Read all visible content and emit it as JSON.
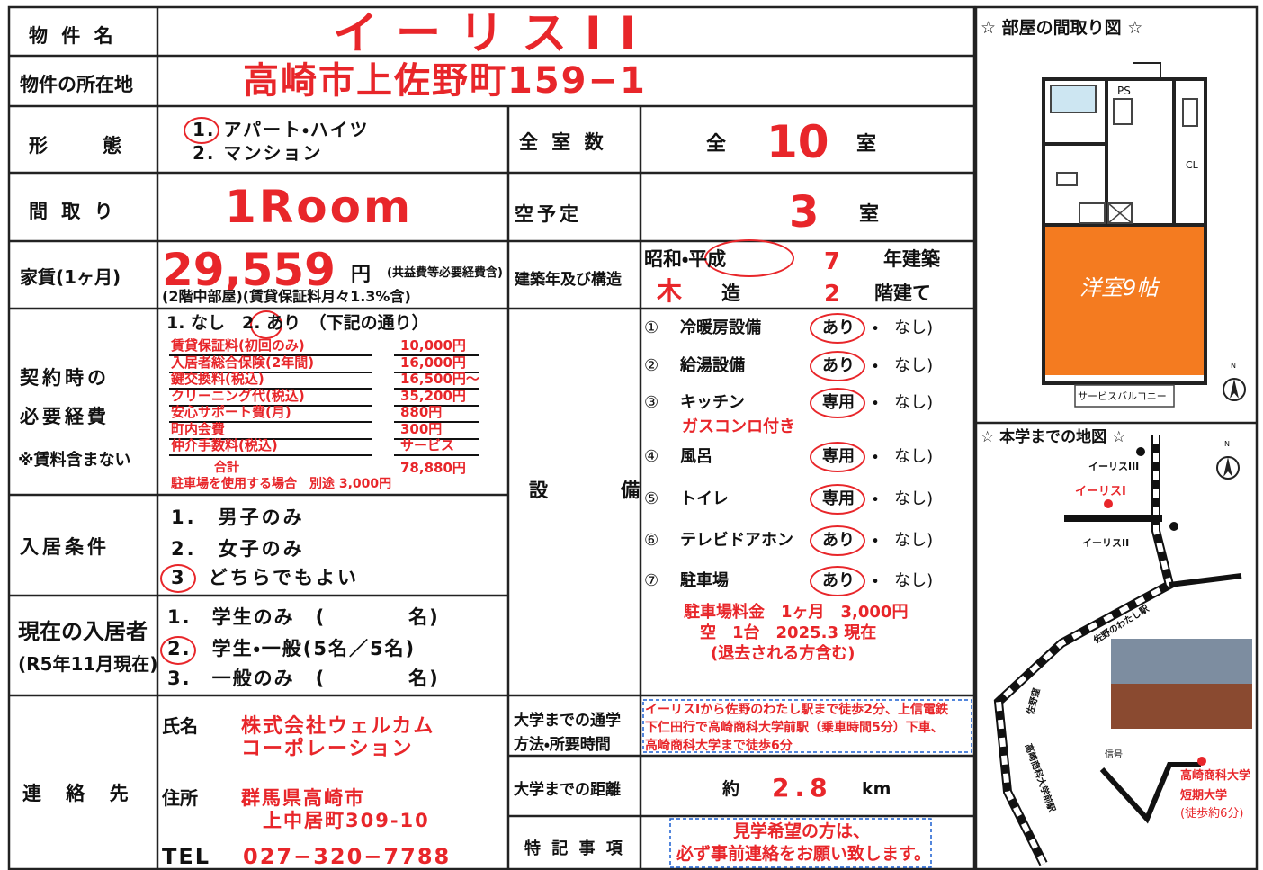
{
  "property": {
    "label": "物 件 名",
    "name": "イーリスII"
  },
  "address": {
    "label": "物件の所在地",
    "value": "高崎市上佐野町159−1"
  },
  "building_type": {
    "label": "形　態",
    "options": [
      "1. アパート・ハイツ",
      "2. マンション"
    ]
  },
  "total_rooms": {
    "label": "全 室 数",
    "prefix": "全",
    "count": "10",
    "suffix": "室"
  },
  "room_layout": {
    "label": "間 取 り",
    "value": "1Room"
  },
  "vacancy": {
    "label": "空予定",
    "count": "3",
    "suffix": "室"
  },
  "rent": {
    "label": "家賃(1ヶ月)",
    "amount": "29,559",
    "unit": "円",
    "note": "(共益費等必要経費含)",
    "sub": "(2階中部屋)(賃貸保証料月々1.3%含)"
  },
  "construction": {
    "label": "建築年及び構造",
    "era": "昭和・平成",
    "year": "7",
    "year_suffix": "年建築",
    "structure": "木",
    "structure_suffix": "造",
    "floors": "2",
    "floors_suffix": "階建て"
  },
  "initial_costs": {
    "label": [
      "契約時の",
      "必要経費",
      "※賃料含まない"
    ],
    "choice": "1. なし　2. あり　（下記の通り）",
    "items": [
      [
        "賃貸保証料(初回のみ)",
        "10,000円"
      ],
      [
        "入居者総合保険(2年間)",
        "16,000円"
      ],
      [
        "鍵交換料(税込)",
        "16,500円〜"
      ],
      [
        "クリーニング代(税込)",
        "35,200円"
      ],
      [
        "安心サポート費(月)",
        "880円"
      ],
      [
        "町内会費",
        "300円"
      ],
      [
        "仲介手数料(税込)",
        "サービス"
      ]
    ],
    "total_label": "合計",
    "total": "78,880円",
    "parking_note": "駐車場を使用する場合　別途 3,000円"
  },
  "tenant_conditions": {
    "label": "入居条件",
    "options": [
      "1.　男子のみ",
      "2.　女子のみ",
      "3　どちらでもよい"
    ]
  },
  "current_residents": {
    "label": "現在の入居者",
    "label_sub": "(R5年11月現在)",
    "options": [
      "1.　学生のみ　(　　　　名)",
      "2.　学生・一般(5名／5名)",
      "3.　一般のみ　(　　　　名)"
    ]
  },
  "contact": {
    "label": "連 絡 先",
    "name_label": "氏名",
    "name": [
      "株式会社ウェルカム",
      "コーポレーション"
    ],
    "address_label": "住所",
    "address": [
      "群馬県高崎市",
      "上中居町309-10"
    ],
    "tel_label": "TEL",
    "tel": "027−320−7788"
  },
  "equipment": {
    "label": "設　備",
    "items": [
      {
        "num": "①",
        "name": "冷暖房設備",
        "value": "あり",
        "other": "・　なし)"
      },
      {
        "num": "②",
        "name": "給湯設備",
        "value": "あり",
        "other": "・　なし)"
      },
      {
        "num": "③",
        "name": "キッチン",
        "value": "専用",
        "other": "・　なし)"
      },
      {
        "num": "④",
        "name": "風呂",
        "value": "専用",
        "other": "・　なし)"
      },
      {
        "num": "⑤",
        "name": "トイレ",
        "value": "専用",
        "other": "・　なし)"
      },
      {
        "num": "⑥",
        "name": "テレビドアホン",
        "value": "あり",
        "other": "・　なし)"
      },
      {
        "num": "⑦",
        "name": "駐車場",
        "value": "あり",
        "other": "・　なし)"
      }
    ],
    "kitchen_note": "ガスコンロ付き",
    "parking_notes": [
      "駐車場料金　1ヶ月　3,000円",
      "空　1台　2025.3 現在",
      "(退去される方含む)"
    ]
  },
  "commute": {
    "label": [
      "大学までの通学",
      "方法・所要時間"
    ],
    "text": [
      "イーリスⅠから佐野のわたし駅まで徒歩2分、上信電鉄",
      "下仁田行で高崎商科大学前駅（乗車時間5分）下車、",
      "高崎商科大学まで徒歩6分"
    ]
  },
  "distance": {
    "label": "大学までの距離",
    "prefix": "約",
    "value": "2.8",
    "unit": "km"
  },
  "remarks": {
    "label": "特 記 事 項",
    "text": [
      "見学希望の方は、",
      "必ず事前連絡をお願い致します。"
    ]
  },
  "floor_plan": {
    "title": "☆ 部屋の間取り図 ☆",
    "ps": "PS",
    "cl": "CL",
    "room": "洋室9帖",
    "balcony": "サービスバルコニー",
    "north": "N"
  },
  "map": {
    "title": "☆ 本学までの地図 ☆",
    "north": "N",
    "eris3": "イーリスIII",
    "eris1": "イーリスI",
    "eris2": "イーリスII",
    "station1": "佐野のわたし駅",
    "sanokubo": "佐野窪",
    "station2": "高崎商科大学前駅",
    "signal": "信号",
    "university": [
      "高崎商科大学",
      "短期大学",
      "(徒歩約6分)"
    ]
  }
}
